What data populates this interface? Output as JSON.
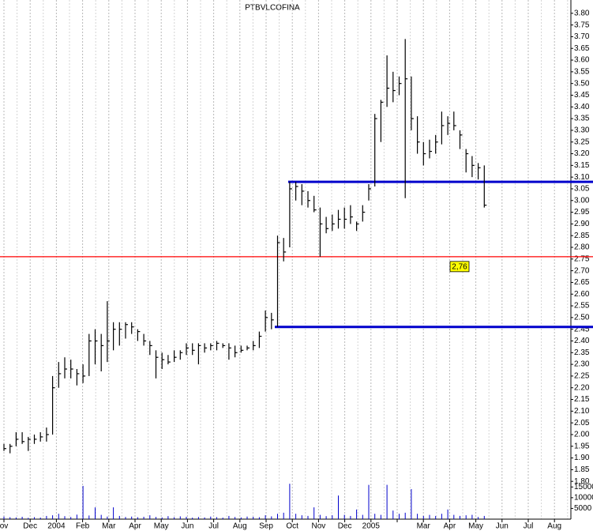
{
  "chart_data": {
    "type": "hlc",
    "title": "PTBVLCOFINA",
    "categories": [
      "ov",
      "Dec",
      "2004",
      "Feb",
      "Mar",
      "Apr",
      "May",
      "Jun",
      "Jul",
      "Aug",
      "Sep",
      "Oct",
      "Nov",
      "Dec",
      "2005",
      null,
      "Mar",
      "Apr",
      "May",
      "Jun",
      "Jul",
      "Aug"
    ],
    "color": "#000000",
    "high": [
      1.96,
      1.96,
      2.01,
      2.01,
      1.99,
      2.0,
      2.01,
      2.03,
      2.25,
      2.31,
      2.33,
      2.32,
      2.28,
      2.3,
      2.43,
      2.45,
      2.43,
      2.57,
      2.48,
      2.48,
      2.48,
      2.48,
      2.45,
      2.43,
      2.4,
      2.36,
      2.35,
      2.34,
      2.36,
      2.36,
      2.39,
      2.39,
      2.39,
      2.39,
      2.39,
      2.4,
      2.39,
      2.39,
      2.38,
      2.38,
      2.38,
      2.4,
      2.44,
      2.53,
      2.52,
      2.85,
      2.84,
      3.08,
      3.08,
      3.07,
      3.04,
      3.02,
      2.97,
      2.93,
      2.94,
      2.96,
      2.97,
      2.98,
      2.91,
      2.98,
      3.07,
      3.37,
      3.43,
      3.62,
      3.55,
      3.53,
      3.69,
      3.53,
      3.36,
      3.25,
      3.26,
      3.28,
      3.38,
      3.36,
      3.38,
      3.3,
      3.22,
      3.19,
      3.16,
      3.15
    ],
    "low": [
      1.93,
      1.92,
      1.95,
      1.96,
      1.93,
      1.96,
      1.97,
      1.97,
      2.0,
      2.2,
      2.24,
      2.24,
      2.21,
      2.22,
      2.25,
      2.3,
      2.27,
      2.31,
      2.36,
      2.38,
      2.41,
      2.43,
      2.4,
      2.38,
      2.34,
      2.24,
      2.28,
      2.3,
      2.31,
      2.32,
      2.34,
      2.34,
      2.3,
      2.35,
      2.36,
      2.36,
      2.37,
      2.32,
      2.33,
      2.35,
      2.36,
      2.36,
      2.37,
      2.44,
      2.45,
      2.46,
      2.74,
      2.8,
      3.0,
      2.98,
      2.97,
      2.95,
      2.76,
      2.86,
      2.87,
      2.88,
      2.88,
      2.9,
      2.87,
      2.91,
      3.0,
      3.06,
      3.25,
      3.4,
      3.42,
      3.45,
      3.01,
      3.3,
      3.2,
      3.15,
      3.18,
      3.2,
      3.24,
      3.28,
      3.3,
      3.22,
      3.12,
      3.1,
      3.09,
      2.97
    ],
    "close": [
      1.94,
      1.95,
      1.98,
      1.97,
      1.98,
      1.98,
      1.99,
      2.0,
      2.2,
      2.26,
      2.28,
      2.28,
      2.26,
      2.25,
      2.4,
      2.4,
      2.38,
      2.4,
      2.45,
      2.45,
      2.47,
      2.46,
      2.44,
      2.4,
      2.38,
      2.33,
      2.32,
      2.31,
      2.33,
      2.35,
      2.37,
      2.36,
      2.38,
      2.37,
      2.38,
      2.39,
      2.38,
      2.37,
      2.35,
      2.36,
      2.37,
      2.38,
      2.42,
      2.5,
      2.49,
      2.82,
      2.78,
      3.05,
      3.06,
      3.04,
      3.0,
      2.96,
      2.9,
      2.88,
      2.9,
      2.92,
      2.92,
      2.93,
      2.9,
      2.95,
      3.05,
      3.35,
      3.42,
      3.48,
      3.47,
      3.5,
      3.52,
      3.35,
      3.25,
      3.2,
      3.21,
      3.25,
      3.32,
      3.33,
      3.32,
      3.28,
      3.2,
      3.15,
      3.14,
      2.98
    ],
    "ylim": [
      1.75,
      3.85
    ],
    "yticks": [
      {
        "value": 1.8,
        "label": "1.80"
      },
      {
        "value": 1.85,
        "label": "1.85"
      },
      {
        "value": 1.9,
        "label": "1.90"
      },
      {
        "value": 1.95,
        "label": "1.95"
      },
      {
        "value": 2.0,
        "label": "2.00"
      },
      {
        "value": 2.05,
        "label": "2.05"
      },
      {
        "value": 2.1,
        "label": "2.10"
      },
      {
        "value": 2.15,
        "label": "2.15"
      },
      {
        "value": 2.2,
        "label": "2.20"
      },
      {
        "value": 2.25,
        "label": "2.25"
      },
      {
        "value": 2.3,
        "label": "2.30"
      },
      {
        "value": 2.35,
        "label": "2.35"
      },
      {
        "value": 2.4,
        "label": "2.40"
      },
      {
        "value": 2.45,
        "label": "2.45"
      },
      {
        "value": 2.5,
        "label": "2.50"
      },
      {
        "value": 2.55,
        "label": "2.55"
      },
      {
        "value": 2.6,
        "label": "2.60"
      },
      {
        "value": 2.65,
        "label": "2.65"
      },
      {
        "value": 2.7,
        "label": "2.70"
      },
      {
        "value": 2.75,
        "label": "2.75"
      },
      {
        "value": 2.8,
        "label": "2.80"
      },
      {
        "value": 2.85,
        "label": "2.85"
      },
      {
        "value": 2.9,
        "label": "2.90"
      },
      {
        "value": 2.95,
        "label": "2.95"
      },
      {
        "value": 3.0,
        "label": "3.00"
      },
      {
        "value": 3.05,
        "label": "3.05"
      },
      {
        "value": 3.1,
        "label": "3.10"
      },
      {
        "value": 3.15,
        "label": "3.15"
      },
      {
        "value": 3.2,
        "label": "3.20"
      },
      {
        "value": 3.25,
        "label": "3.25"
      },
      {
        "value": 3.3,
        "label": "3.30"
      },
      {
        "value": 3.35,
        "label": "3.35"
      },
      {
        "value": 3.4,
        "label": "3.40"
      },
      {
        "value": 3.45,
        "label": "3.45"
      },
      {
        "value": 3.5,
        "label": "3.50"
      },
      {
        "value": 3.55,
        "label": "3.55"
      },
      {
        "value": 3.6,
        "label": "3.60"
      },
      {
        "value": 3.65,
        "label": "3.65"
      },
      {
        "value": 3.7,
        "label": "3.70"
      },
      {
        "value": 3.75,
        "label": "3.75"
      },
      {
        "value": 3.8,
        "label": "3.80"
      }
    ],
    "hlines": [
      {
        "value": 2.76,
        "color": "#ff0000",
        "label": "2,76"
      },
      {
        "value": 3.08,
        "color": "#0000cc"
      },
      {
        "value": 2.46,
        "color": "#0000cc"
      }
    ],
    "volume": {
      "color": "#0000cc",
      "values": [
        1200,
        900,
        800,
        1100,
        600,
        900,
        700,
        1500,
        1800,
        2500,
        1400,
        1000,
        2100,
        15500,
        1700,
        5500,
        2000,
        1200,
        5500,
        1500,
        1000,
        1200,
        900,
        1100,
        1800,
        1000,
        800,
        1400,
        900,
        1300,
        1100,
        700,
        1000,
        800,
        1200,
        900,
        700,
        1500,
        1000,
        800,
        1200,
        1100,
        900,
        1800,
        1300,
        2500,
        3000,
        16500,
        2500,
        1800,
        1500,
        5500,
        2000,
        1400,
        1800,
        11000,
        2000,
        1500,
        4500,
        2000,
        16000,
        2500,
        2000,
        16000,
        4000,
        2500,
        3000,
        14000,
        2500,
        1500,
        2000,
        1500,
        2500,
        4500,
        2000,
        1500,
        1800,
        2000,
        1000,
        1500
      ],
      "ylim": [
        0,
        21000
      ],
      "yticks": [
        5000,
        10000,
        15000
      ]
    }
  }
}
